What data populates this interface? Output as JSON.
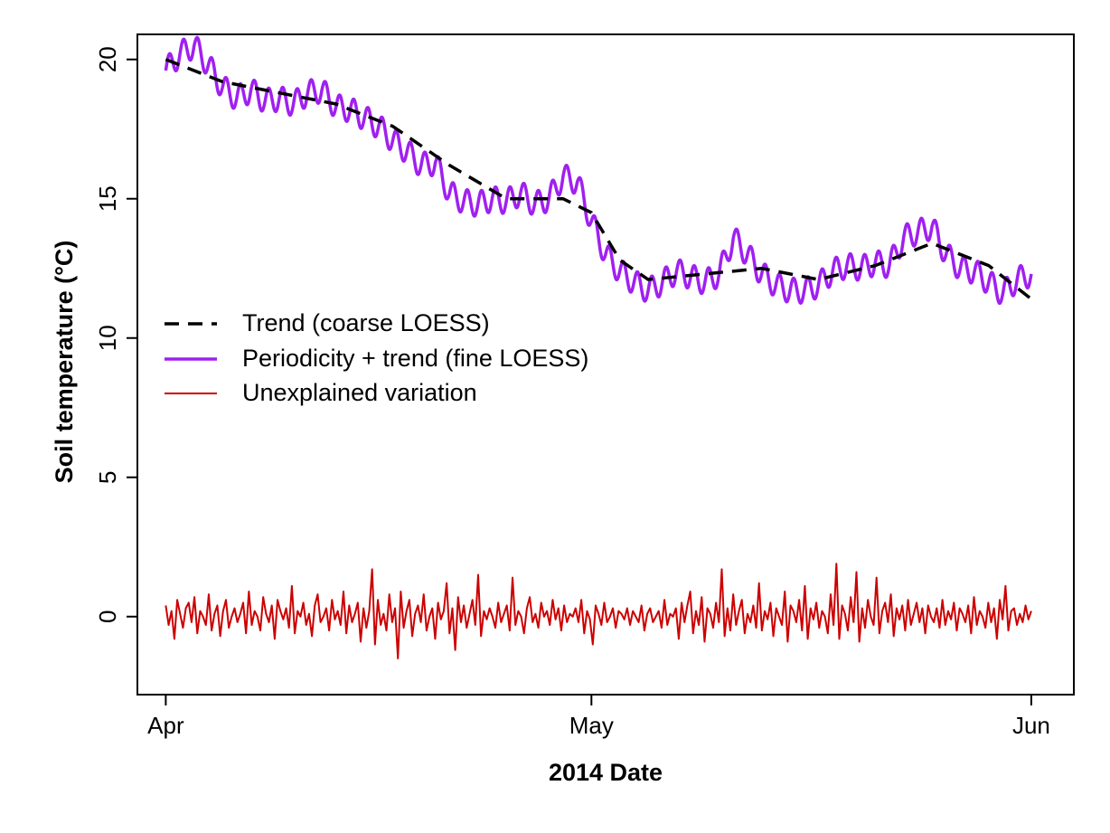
{
  "chart_data": {
    "type": "line",
    "title": "",
    "xlabel": "2014 Date",
    "ylabel": "Soil temperature (°C)",
    "x_start": "2014-04-01",
    "x_end": "2014-06-01",
    "xlim": [
      "2014-03-30",
      "2014-06-04"
    ],
    "ylim": [
      -2.8,
      20.9
    ],
    "x_ticks": [
      {
        "date": "2014-04-01",
        "label": "Apr"
      },
      {
        "date": "2014-05-01",
        "label": "May"
      },
      {
        "date": "2014-06-01",
        "label": "Jun"
      }
    ],
    "y_ticks": [
      {
        "value": 0,
        "label": "0"
      },
      {
        "value": 5,
        "label": "5"
      },
      {
        "value": 10,
        "label": "10"
      },
      {
        "value": 15,
        "label": "15"
      },
      {
        "value": 20,
        "label": "20"
      }
    ],
    "grid": false,
    "legend_position": "left-middle",
    "series": [
      {
        "name": "Trend (coarse LOESS)",
        "color": "#000000",
        "style": "dashed",
        "x": [
          "2014-04-01",
          "2014-04-05",
          "2014-04-09",
          "2014-04-13",
          "2014-04-17",
          "2014-04-21",
          "2014-04-25",
          "2014-04-29",
          "2014-05-01",
          "2014-05-03",
          "2014-05-05",
          "2014-05-09",
          "2014-05-13",
          "2014-05-17",
          "2014-05-21",
          "2014-05-25",
          "2014-05-29",
          "2014-06-01"
        ],
        "y": [
          20.0,
          19.2,
          18.8,
          18.4,
          17.6,
          16.2,
          15.0,
          15.0,
          14.5,
          12.8,
          12.1,
          12.3,
          12.5,
          12.1,
          12.6,
          13.4,
          12.6,
          11.4
        ]
      },
      {
        "name": "Periodicity + trend (fine LOESS)",
        "color": "#a020f0",
        "style": "solid",
        "x": [
          "2014-04-01",
          "2014-04-02",
          "2014-04-03",
          "2014-04-04",
          "2014-04-05",
          "2014-04-06",
          "2014-04-07",
          "2014-04-08",
          "2014-04-09",
          "2014-04-10",
          "2014-04-11",
          "2014-04-12",
          "2014-04-13",
          "2014-04-14",
          "2014-04-15",
          "2014-04-16",
          "2014-04-17",
          "2014-04-18",
          "2014-04-19",
          "2014-04-20",
          "2014-04-21",
          "2014-04-22",
          "2014-04-23",
          "2014-04-24",
          "2014-04-25",
          "2014-04-26",
          "2014-04-27",
          "2014-04-28",
          "2014-04-29",
          "2014-04-30",
          "2014-05-01",
          "2014-05-02",
          "2014-05-03",
          "2014-05-04",
          "2014-05-05",
          "2014-05-06",
          "2014-05-07",
          "2014-05-08",
          "2014-05-09",
          "2014-05-10",
          "2014-05-11",
          "2014-05-12",
          "2014-05-13",
          "2014-05-14",
          "2014-05-15",
          "2014-05-16",
          "2014-05-17",
          "2014-05-18",
          "2014-05-19",
          "2014-05-20",
          "2014-05-21",
          "2014-05-22",
          "2014-05-23",
          "2014-05-24",
          "2014-05-25",
          "2014-05-26",
          "2014-05-27",
          "2014-05-28",
          "2014-05-29",
          "2014-05-30",
          "2014-05-31",
          "2014-06-01"
        ],
        "y": [
          19.6,
          20.2,
          20.5,
          19.8,
          19.0,
          18.6,
          18.9,
          18.5,
          18.6,
          18.4,
          18.8,
          18.9,
          18.3,
          18.2,
          17.9,
          17.6,
          17.1,
          16.7,
          16.2,
          16.3,
          15.2,
          14.9,
          14.8,
          15.0,
          14.9,
          15.2,
          14.8,
          15.0,
          15.8,
          15.6,
          14.2,
          13.0,
          12.4,
          12.0,
          11.7,
          12.0,
          12.4,
          12.2,
          12.0,
          12.3,
          13.6,
          13.0,
          12.3,
          11.9,
          11.7,
          11.7,
          11.9,
          12.4,
          12.6,
          12.5,
          12.7,
          12.6,
          13.6,
          13.8,
          14.0,
          13.0,
          12.5,
          12.4,
          12.0,
          11.6,
          12.1,
          12.3
        ],
        "diurnal_amplitude": 0.45
      },
      {
        "name": "Unexplained variation",
        "color": "#cc0000",
        "style": "solid",
        "x_start": "2014-04-01",
        "x_end": "2014-06-01",
        "step_days": 0.125,
        "y": [
          0.4,
          -0.3,
          0.2,
          -0.8,
          0.6,
          0.1,
          -0.4,
          0.3,
          0.5,
          -0.2,
          0.7,
          -0.6,
          0.2,
          0.0,
          -0.3,
          0.8,
          -0.5,
          0.1,
          0.4,
          -0.7,
          0.2,
          0.6,
          -0.4,
          0.0,
          0.3,
          -0.2,
          0.1,
          0.5,
          -0.6,
          0.9,
          -0.3,
          0.2,
          0.0,
          -0.5,
          0.7,
          0.1,
          -0.2,
          0.4,
          -0.8,
          0.6,
          0.2,
          -0.1,
          0.3,
          -0.4,
          1.1,
          -0.6,
          0.2,
          0.0,
          0.5,
          -0.3,
          0.1,
          -0.7,
          0.4,
          0.8,
          -0.2,
          0.0,
          0.3,
          -0.5,
          0.6,
          -0.1,
          0.2,
          -0.3,
          0.9,
          -0.6,
          0.4,
          -0.2,
          0.1,
          0.5,
          -0.9,
          0.3,
          -0.4,
          0.2,
          1.7,
          -1.0,
          0.6,
          -0.3,
          0.1,
          -0.5,
          0.8,
          -0.2,
          0.3,
          -1.5,
          0.9,
          -0.4,
          0.2,
          0.6,
          -0.7,
          0.1,
          0.4,
          -0.2,
          0.8,
          -0.5,
          0.0,
          0.3,
          -0.8,
          0.5,
          -0.1,
          0.2,
          1.2,
          -0.6,
          0.3,
          -1.2,
          0.7,
          -0.2,
          0.4,
          -0.4,
          0.1,
          0.6,
          -0.3,
          1.5,
          -0.7,
          0.2,
          -0.1,
          0.3,
          0.0,
          -0.4,
          0.5,
          -0.2,
          0.1,
          0.4,
          -0.5,
          1.4,
          -0.3,
          0.2,
          0.0,
          -0.6,
          0.3,
          0.7,
          -0.2,
          0.1,
          -0.4,
          0.5,
          0.0,
          0.2,
          -0.3,
          0.6,
          -0.1,
          0.3,
          -0.5,
          0.4,
          -0.2,
          0.1,
          0.0,
          0.3,
          -0.2,
          0.6,
          -0.6,
          0.2,
          -0.1,
          -1.0,
          0.4,
          0.1,
          -0.3,
          0.5,
          -0.2,
          0.0,
          0.3,
          -0.4,
          0.2,
          0.1,
          -0.1,
          0.3,
          -0.3,
          0.2,
          0.0,
          -0.2,
          0.4,
          -0.5,
          0.1,
          0.3,
          -0.2,
          0.0,
          0.2,
          -0.4,
          0.6,
          -0.3,
          0.1,
          0.0,
          0.3,
          -0.8,
          0.5,
          -0.2,
          0.4,
          0.9,
          -0.6,
          0.2,
          -0.3,
          0.7,
          -0.9,
          0.3,
          0.1,
          -0.4,
          0.5,
          -0.2,
          1.7,
          -0.7,
          0.3,
          -0.5,
          0.8,
          -0.3,
          0.2,
          0.6,
          -0.6,
          0.1,
          -0.2,
          0.4,
          -0.4,
          1.2,
          -0.5,
          0.2,
          -0.1,
          0.5,
          -0.7,
          0.3,
          0.0,
          -0.3,
          0.9,
          -0.9,
          0.4,
          0.2,
          -0.2,
          0.6,
          -0.5,
          1.1,
          -0.8,
          0.3,
          -0.1,
          0.5,
          -0.4,
          0.2,
          0.0,
          -0.6,
          0.8,
          -0.3,
          1.9,
          -0.8,
          0.4,
          0.1,
          -0.5,
          0.7,
          -0.2,
          1.6,
          -0.9,
          0.3,
          -0.4,
          0.6,
          0.0,
          -0.3,
          1.4,
          -0.6,
          0.2,
          0.5,
          -0.2,
          0.8,
          -0.7,
          0.3,
          -0.1,
          0.4,
          -0.5,
          0.6,
          -0.3,
          0.1,
          0.5,
          -0.2,
          0.3,
          -0.6,
          0.4,
          0.0,
          -0.2,
          0.3,
          -0.4,
          0.6,
          -0.3,
          0.2,
          -0.1,
          0.5,
          -0.5,
          0.3,
          0.1,
          -0.2,
          0.4,
          -0.6,
          0.7,
          -0.3,
          0.2,
          0.0,
          -0.4,
          0.5,
          -0.2,
          0.3,
          -0.8,
          0.6,
          -0.1,
          1.1,
          -0.5,
          0.2,
          0.3,
          -0.3,
          0.1,
          -0.2,
          0.4,
          -0.1,
          0.2
        ]
      }
    ]
  }
}
